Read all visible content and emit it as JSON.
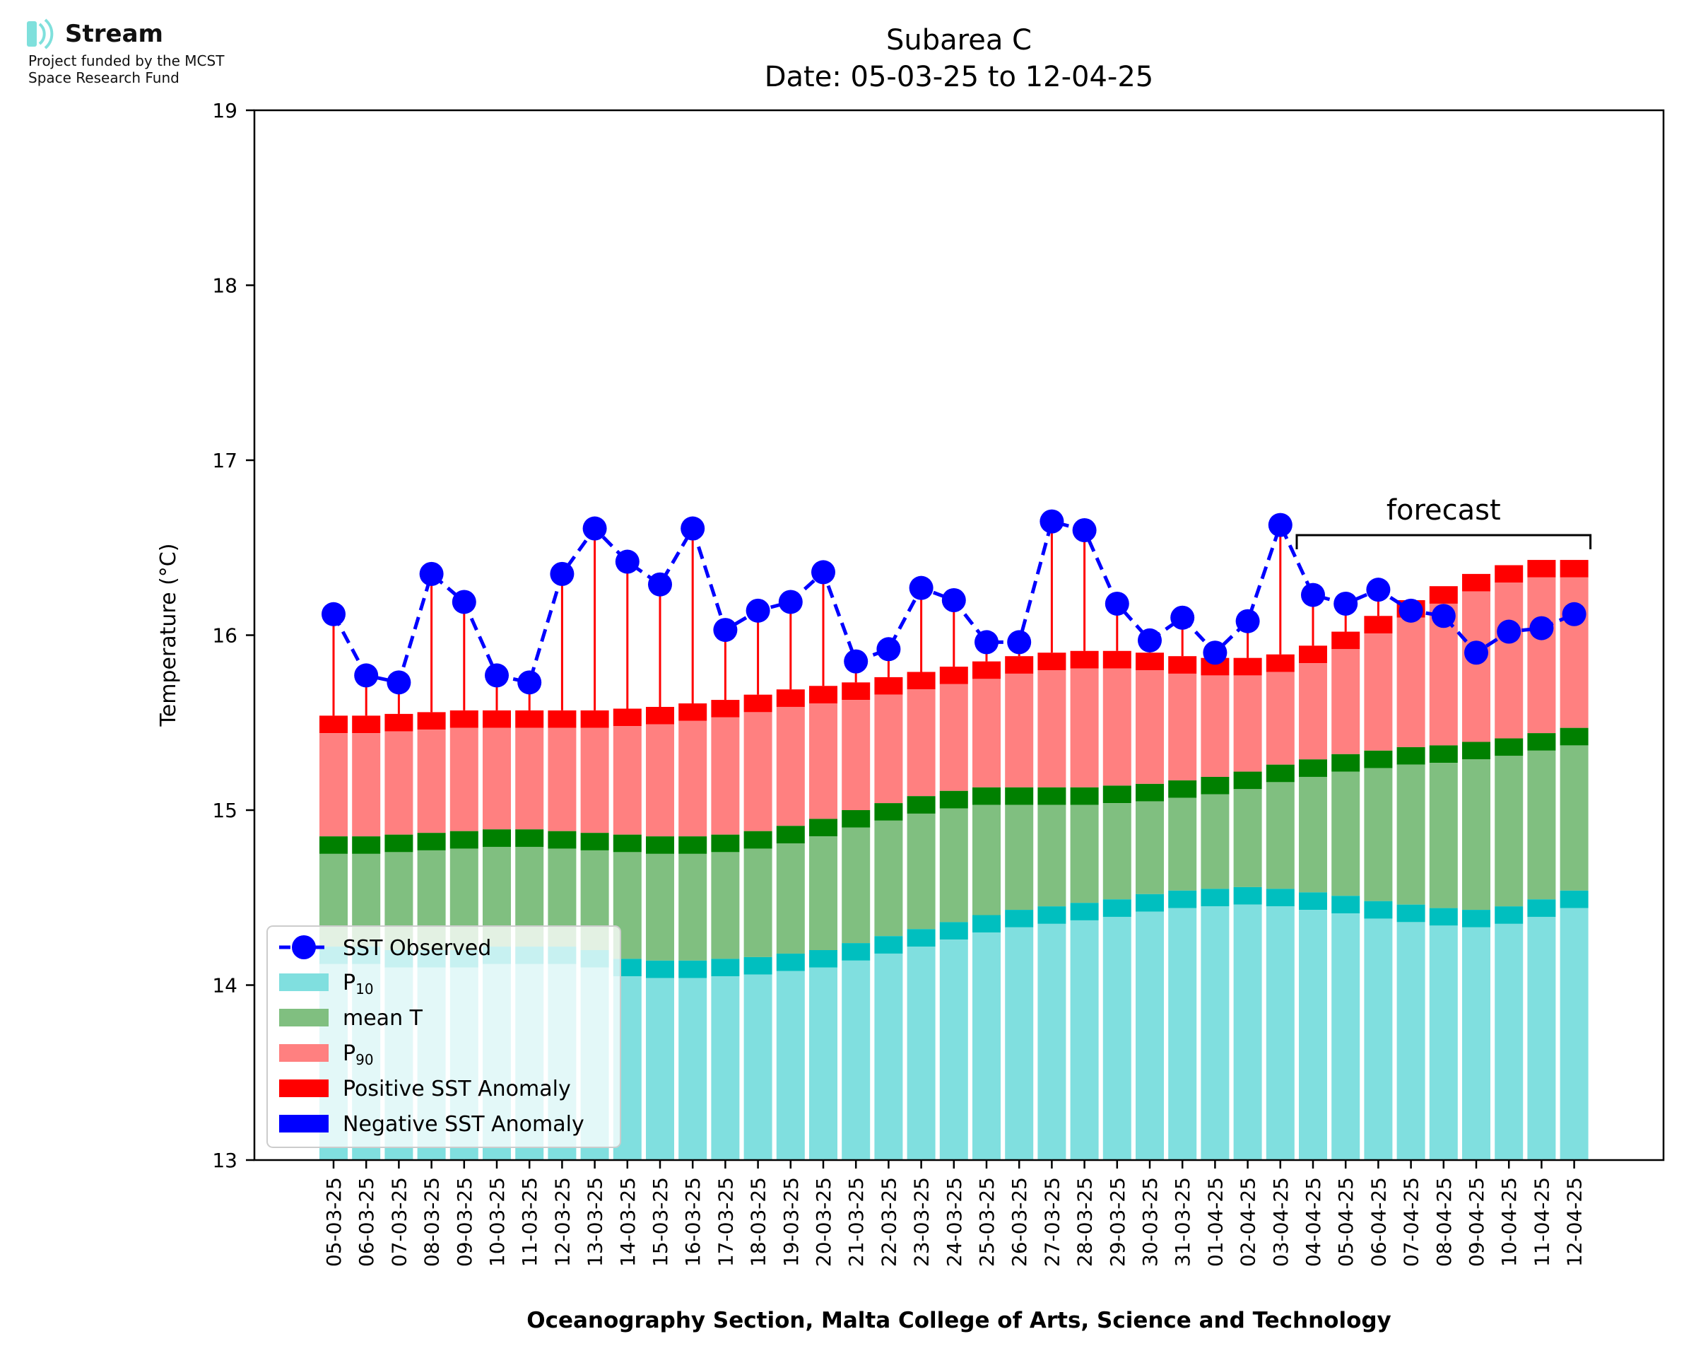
{
  "logo": {
    "name": "Stream",
    "line1": "Project funded by the MCST",
    "line2": "Space Research Fund"
  },
  "chart_data": {
    "type": "bar",
    "title": "Subarea C",
    "subtitle": "Date: 05-03-25 to 12-04-25",
    "ylabel": "Temperature (°C)",
    "xlabel": "Oceanography Section, Malta College of Arts, Science and Technology",
    "ylim": [
      13,
      19
    ],
    "yticks": [
      "13",
      "14",
      "15",
      "16",
      "17",
      "18",
      "19"
    ],
    "annotation": "forecast",
    "forecast_range": [
      "04-04-25",
      "12-04-25"
    ],
    "legend_position": "lower-left",
    "legend": {
      "sst": "SST Observed",
      "p10_base": "P",
      "p10_sub": "10",
      "mean": "mean T",
      "p90_base": "P",
      "p90_sub": "90",
      "pos": "Positive SST Anomaly",
      "neg": "Negative SST Anomaly"
    },
    "colors": {
      "p10": "#80dfdf",
      "p10_cap": "#00bfbf",
      "mean": "#80bf80",
      "mean_cap": "#008000",
      "p90": "#ff8080",
      "p90_cap": "#ff0000",
      "sst": "#0000ff",
      "anomaly": "#ff0000",
      "negative": "#0000ff"
    },
    "categories": [
      "05-03-25",
      "06-03-25",
      "07-03-25",
      "08-03-25",
      "09-03-25",
      "10-03-25",
      "11-03-25",
      "12-03-25",
      "13-03-25",
      "14-03-25",
      "15-03-25",
      "16-03-25",
      "17-03-25",
      "18-03-25",
      "19-03-25",
      "20-03-25",
      "21-03-25",
      "22-03-25",
      "23-03-25",
      "24-03-25",
      "25-03-25",
      "26-03-25",
      "27-03-25",
      "28-03-25",
      "29-03-25",
      "30-03-25",
      "31-03-25",
      "01-04-25",
      "02-04-25",
      "03-04-25",
      "04-04-25",
      "05-04-25",
      "06-04-25",
      "07-04-25",
      "08-04-25",
      "09-04-25",
      "10-04-25",
      "11-04-25",
      "12-04-25"
    ],
    "series": [
      {
        "name": "P10",
        "values": [
          14.12,
          14.12,
          14.1,
          14.1,
          14.1,
          14.12,
          14.12,
          14.12,
          14.1,
          14.05,
          14.04,
          14.04,
          14.05,
          14.06,
          14.08,
          14.1,
          14.14,
          14.18,
          14.22,
          14.26,
          14.3,
          14.33,
          14.35,
          14.37,
          14.39,
          14.42,
          14.44,
          14.45,
          14.46,
          14.45,
          14.43,
          14.41,
          14.38,
          14.36,
          14.34,
          14.33,
          14.35,
          14.39,
          14.44
        ]
      },
      {
        "name": "mean T",
        "values": [
          14.75,
          14.75,
          14.76,
          14.77,
          14.78,
          14.79,
          14.79,
          14.78,
          14.77,
          14.76,
          14.75,
          14.75,
          14.76,
          14.78,
          14.81,
          14.85,
          14.9,
          14.94,
          14.98,
          15.01,
          15.03,
          15.03,
          15.03,
          15.03,
          15.04,
          15.05,
          15.07,
          15.09,
          15.12,
          15.16,
          15.19,
          15.22,
          15.24,
          15.26,
          15.27,
          15.29,
          15.31,
          15.34,
          15.37
        ]
      },
      {
        "name": "P90",
        "values": [
          15.44,
          15.44,
          15.45,
          15.46,
          15.47,
          15.47,
          15.47,
          15.47,
          15.47,
          15.48,
          15.49,
          15.51,
          15.53,
          15.56,
          15.59,
          15.61,
          15.63,
          15.66,
          15.69,
          15.72,
          15.75,
          15.78,
          15.8,
          15.81,
          15.81,
          15.8,
          15.78,
          15.77,
          15.77,
          15.79,
          15.84,
          15.92,
          16.01,
          16.1,
          16.18,
          16.25,
          16.3,
          16.33,
          16.33
        ]
      },
      {
        "name": "SST Observed",
        "values": [
          16.12,
          15.77,
          15.73,
          16.35,
          16.19,
          15.77,
          15.73,
          16.35,
          16.61,
          16.42,
          16.29,
          16.61,
          16.03,
          16.14,
          16.19,
          16.36,
          15.85,
          15.92,
          16.27,
          16.2,
          15.96,
          15.96,
          16.65,
          16.6,
          16.18,
          15.97,
          16.1,
          15.9,
          16.08,
          16.63,
          16.23,
          16.18,
          16.26,
          16.14,
          16.11,
          15.9,
          16.02,
          16.04,
          16.12
        ]
      }
    ]
  }
}
